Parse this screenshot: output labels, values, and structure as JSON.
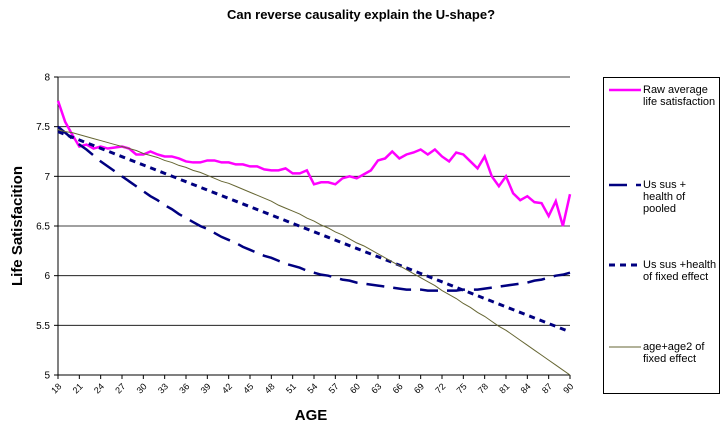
{
  "chart_data": {
    "type": "line",
    "title": "Can reverse causality explain the U-shape?",
    "x_label": "AGE",
    "y_label": "Life Satisfacition",
    "x": [
      18,
      19,
      20,
      21,
      22,
      23,
      24,
      25,
      26,
      27,
      28,
      29,
      30,
      31,
      32,
      33,
      34,
      35,
      36,
      37,
      38,
      39,
      40,
      41,
      42,
      43,
      44,
      45,
      46,
      47,
      48,
      49,
      50,
      51,
      52,
      53,
      54,
      55,
      56,
      57,
      58,
      59,
      60,
      61,
      62,
      63,
      64,
      65,
      66,
      67,
      68,
      69,
      70,
      71,
      72,
      73,
      74,
      75,
      76,
      77,
      78,
      79,
      80,
      81,
      82,
      83,
      84,
      85,
      86,
      87,
      88,
      89,
      90
    ],
    "xlim": [
      18,
      90
    ],
    "xticks": [
      18,
      21,
      24,
      27,
      30,
      33,
      36,
      39,
      42,
      45,
      48,
      51,
      54,
      57,
      60,
      63,
      66,
      69,
      72,
      75,
      78,
      81,
      84,
      87,
      90
    ],
    "ylim": [
      5,
      8
    ],
    "yticks": [
      5,
      5.5,
      6,
      6.5,
      7,
      7.5,
      8
    ],
    "grid": true,
    "legend": "right",
    "series": [
      {
        "name": "Raw average life satisfaction",
        "color": "#ff00ff",
        "width": 2.5,
        "dash": "solid",
        "values": [
          7.76,
          7.55,
          7.42,
          7.3,
          7.32,
          7.28,
          7.3,
          7.28,
          7.29,
          7.3,
          7.28,
          7.22,
          7.22,
          7.25,
          7.22,
          7.2,
          7.2,
          7.18,
          7.15,
          7.14,
          7.14,
          7.16,
          7.16,
          7.14,
          7.14,
          7.12,
          7.12,
          7.1,
          7.1,
          7.07,
          7.06,
          7.06,
          7.08,
          7.03,
          7.03,
          7.06,
          6.92,
          6.94,
          6.94,
          6.92,
          6.98,
          7.0,
          6.98,
          7.02,
          7.06,
          7.16,
          7.18,
          7.25,
          7.18,
          7.22,
          7.24,
          7.27,
          7.22,
          7.27,
          7.2,
          7.15,
          7.24,
          7.22,
          7.15,
          7.08,
          7.2,
          7.0,
          6.9,
          7.0,
          6.83,
          6.76,
          6.8,
          6.74,
          6.73,
          6.6,
          6.75,
          6.5,
          6.82
        ]
      },
      {
        "name": "Us sus + health of pooled",
        "color": "#000080",
        "width": 2.5,
        "dash": "long-dash",
        "values": [
          7.5,
          7.44,
          7.38,
          7.32,
          7.27,
          7.21,
          7.15,
          7.1,
          7.05,
          7.0,
          6.95,
          6.9,
          6.85,
          6.8,
          6.76,
          6.71,
          6.67,
          6.62,
          6.58,
          6.54,
          6.5,
          6.47,
          6.43,
          6.39,
          6.36,
          6.33,
          6.29,
          6.26,
          6.23,
          6.2,
          6.18,
          6.15,
          6.12,
          6.1,
          6.08,
          6.05,
          6.03,
          6.01,
          6.0,
          5.98,
          5.96,
          5.95,
          5.93,
          5.92,
          5.91,
          5.9,
          5.89,
          5.88,
          5.87,
          5.86,
          5.86,
          5.86,
          5.85,
          5.85,
          5.85,
          5.85,
          5.85,
          5.86,
          5.86,
          5.86,
          5.87,
          5.88,
          5.89,
          5.9,
          5.91,
          5.92,
          5.93,
          5.95,
          5.96,
          5.98,
          6.0,
          6.01,
          6.03
        ]
      },
      {
        "name": "Us sus +health of fixed effect",
        "color": "#000080",
        "width": 3,
        "dash": "dash",
        "values": [
          7.45,
          7.422,
          7.394,
          7.366,
          7.338,
          7.31,
          7.282,
          7.254,
          7.226,
          7.198,
          7.17,
          7.142,
          7.114,
          7.086,
          7.058,
          7.03,
          7.002,
          6.974,
          6.946,
          6.918,
          6.89,
          6.862,
          6.834,
          6.806,
          6.778,
          6.75,
          6.722,
          6.694,
          6.666,
          6.638,
          6.61,
          6.582,
          6.554,
          6.526,
          6.498,
          6.47,
          6.442,
          6.414,
          6.386,
          6.358,
          6.33,
          6.302,
          6.274,
          6.246,
          6.218,
          6.19,
          6.162,
          6.134,
          6.106,
          6.078,
          6.05,
          6.022,
          5.994,
          5.966,
          5.938,
          5.91,
          5.882,
          5.854,
          5.826,
          5.798,
          5.77,
          5.742,
          5.714,
          5.686,
          5.658,
          5.63,
          5.602,
          5.574,
          5.546,
          5.518,
          5.49,
          5.462,
          5.434
        ]
      },
      {
        "name": "age+age2 of fixed effect",
        "color": "#666633",
        "width": 1,
        "dash": "solid",
        "values": [
          7.47,
          7.45,
          7.44,
          7.42,
          7.4,
          7.38,
          7.36,
          7.34,
          7.32,
          7.3,
          7.28,
          7.26,
          7.23,
          7.21,
          7.19,
          7.16,
          7.14,
          7.11,
          7.09,
          7.06,
          7.04,
          7.01,
          6.98,
          6.95,
          6.93,
          6.9,
          6.87,
          6.84,
          6.81,
          6.78,
          6.75,
          6.71,
          6.68,
          6.65,
          6.62,
          6.58,
          6.55,
          6.51,
          6.48,
          6.44,
          6.41,
          6.37,
          6.33,
          6.3,
          6.26,
          6.22,
          6.18,
          6.14,
          6.1,
          6.06,
          6.02,
          5.98,
          5.94,
          5.9,
          5.85,
          5.81,
          5.77,
          5.72,
          5.68,
          5.63,
          5.59,
          5.54,
          5.49,
          5.45,
          5.4,
          5.35,
          5.3,
          5.25,
          5.2,
          5.15,
          5.1,
          5.05,
          5.0
        ]
      }
    ]
  }
}
